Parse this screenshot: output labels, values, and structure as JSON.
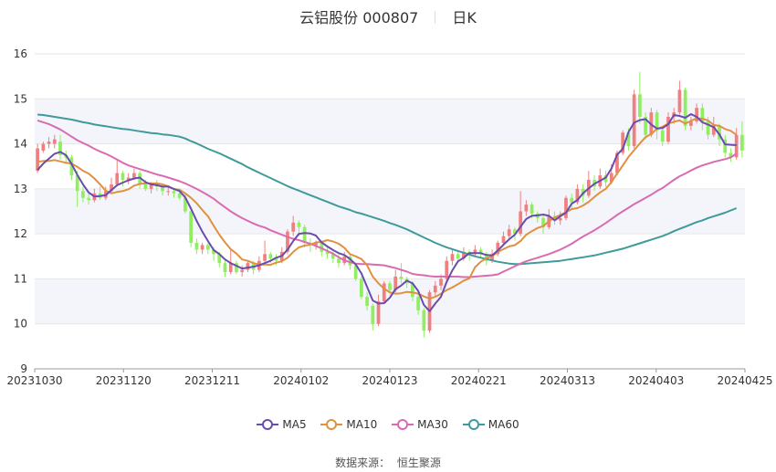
{
  "title": {
    "name": "云铝股份 000807",
    "period": "日K"
  },
  "source": {
    "label": "数据来源：",
    "value": "恒生聚源"
  },
  "colors": {
    "up": "#f08080",
    "down": "#90ee60",
    "MA5": "#6a4caf",
    "MA10": "#e0913f",
    "MA30": "#d96bb2",
    "MA60": "#3f9a9a"
  },
  "chart_data": {
    "type": "candlestick",
    "ylim": [
      9,
      16
    ],
    "yticks": [
      9,
      10,
      11,
      12,
      13,
      14,
      15,
      16
    ],
    "xticks": [
      "20231030",
      "20231120",
      "20231211",
      "20240102",
      "20240123",
      "20240221",
      "20240313",
      "20240403",
      "20240425"
    ],
    "grid": true,
    "legend_position": "bottom",
    "legend": [
      "MA5",
      "MA10",
      "MA30",
      "MA60"
    ],
    "ohlc": [
      [
        13.4,
        13.9,
        13.35,
        14.0
      ],
      [
        13.85,
        14.0,
        13.8,
        14.05
      ],
      [
        14.0,
        14.05,
        13.9,
        14.15
      ],
      [
        14.0,
        14.1,
        13.9,
        14.2
      ],
      [
        14.05,
        13.75,
        13.65,
        14.2
      ],
      [
        13.75,
        13.7,
        13.55,
        13.85
      ],
      [
        13.7,
        13.3,
        13.2,
        13.75
      ],
      [
        13.3,
        12.95,
        12.6,
        13.4
      ],
      [
        12.95,
        12.8,
        12.7,
        13.05
      ],
      [
        12.8,
        12.75,
        12.65,
        12.95
      ],
      [
        12.75,
        12.9,
        12.7,
        13.0
      ],
      [
        12.9,
        12.8,
        12.75,
        13.05
      ],
      [
        12.8,
        12.95,
        12.75,
        13.05
      ],
      [
        12.95,
        13.1,
        12.9,
        13.25
      ],
      [
        13.1,
        13.35,
        13.05,
        13.65
      ],
      [
        13.35,
        13.2,
        13.05,
        13.4
      ],
      [
        13.2,
        13.25,
        13.1,
        13.35
      ],
      [
        13.25,
        13.35,
        13.2,
        13.45
      ],
      [
        13.35,
        13.1,
        13.0,
        13.4
      ],
      [
        13.1,
        13.0,
        12.95,
        13.2
      ],
      [
        13.0,
        13.1,
        12.9,
        13.15
      ],
      [
        13.1,
        13.05,
        12.95,
        13.2
      ],
      [
        13.05,
        12.95,
        12.85,
        13.1
      ],
      [
        12.95,
        12.95,
        12.85,
        13.05
      ],
      [
        12.95,
        12.9,
        12.8,
        13.0
      ],
      [
        12.9,
        12.8,
        12.75,
        13.0
      ],
      [
        12.8,
        12.5,
        12.45,
        12.9
      ],
      [
        12.5,
        11.8,
        11.7,
        12.55
      ],
      [
        11.8,
        11.65,
        11.55,
        11.9
      ],
      [
        11.65,
        11.75,
        11.55,
        11.8
      ],
      [
        11.75,
        11.65,
        11.55,
        11.8
      ],
      [
        11.65,
        11.55,
        11.4,
        11.7
      ],
      [
        11.55,
        11.35,
        11.25,
        11.6
      ],
      [
        11.35,
        11.15,
        11.05,
        11.45
      ],
      [
        11.15,
        11.35,
        11.1,
        11.65
      ],
      [
        11.35,
        11.15,
        11.1,
        11.4
      ],
      [
        11.15,
        11.2,
        11.05,
        11.3
      ],
      [
        11.2,
        11.35,
        11.15,
        11.4
      ],
      [
        11.35,
        11.2,
        11.1,
        11.4
      ],
      [
        11.2,
        11.4,
        11.15,
        11.5
      ],
      [
        11.4,
        11.55,
        11.35,
        11.85
      ],
      [
        11.55,
        11.45,
        11.35,
        11.6
      ],
      [
        11.45,
        11.4,
        11.3,
        11.55
      ],
      [
        11.4,
        11.6,
        11.35,
        11.7
      ],
      [
        11.6,
        12.05,
        11.55,
        12.1
      ],
      [
        12.05,
        12.25,
        11.95,
        12.4
      ],
      [
        12.25,
        12.15,
        11.95,
        12.3
      ],
      [
        12.15,
        11.8,
        11.7,
        12.2
      ],
      [
        11.8,
        11.75,
        11.6,
        11.9
      ],
      [
        11.75,
        11.8,
        11.65,
        11.85
      ],
      [
        11.8,
        11.6,
        11.5,
        11.85
      ],
      [
        11.6,
        11.55,
        11.45,
        11.7
      ],
      [
        11.55,
        11.45,
        11.35,
        11.6
      ],
      [
        11.45,
        11.35,
        11.25,
        11.55
      ],
      [
        11.35,
        11.5,
        11.3,
        11.6
      ],
      [
        11.5,
        11.3,
        11.2,
        11.55
      ],
      [
        11.3,
        11.0,
        10.95,
        11.35
      ],
      [
        11.0,
        10.6,
        10.55,
        11.05
      ],
      [
        10.6,
        10.4,
        10.3,
        10.7
      ],
      [
        10.4,
        10.0,
        9.85,
        10.45
      ],
      [
        10.0,
        10.5,
        9.95,
        10.65
      ],
      [
        10.5,
        10.9,
        10.45,
        10.95
      ],
      [
        10.9,
        10.75,
        10.65,
        10.95
      ],
      [
        10.75,
        11.05,
        10.7,
        11.2
      ],
      [
        11.05,
        11.0,
        10.9,
        11.35
      ],
      [
        11.0,
        10.9,
        10.8,
        11.05
      ],
      [
        10.9,
        10.6,
        10.5,
        10.95
      ],
      [
        10.6,
        10.3,
        10.2,
        10.7
      ],
      [
        10.3,
        9.85,
        9.7,
        10.35
      ],
      [
        9.85,
        10.7,
        9.8,
        10.75
      ],
      [
        10.7,
        10.85,
        10.6,
        10.95
      ],
      [
        10.85,
        11.0,
        10.75,
        11.1
      ],
      [
        11.0,
        11.4,
        10.95,
        11.5
      ],
      [
        11.4,
        11.55,
        11.3,
        11.65
      ],
      [
        11.55,
        11.45,
        11.35,
        11.6
      ],
      [
        11.45,
        11.6,
        11.4,
        11.7
      ],
      [
        11.6,
        11.55,
        11.4,
        11.65
      ],
      [
        11.55,
        11.65,
        11.5,
        11.75
      ],
      [
        11.65,
        11.55,
        11.45,
        11.7
      ],
      [
        11.55,
        11.4,
        11.3,
        11.6
      ],
      [
        11.4,
        11.55,
        11.35,
        11.65
      ],
      [
        11.55,
        11.8,
        11.5,
        11.85
      ],
      [
        11.8,
        11.95,
        11.75,
        12.05
      ],
      [
        11.95,
        12.1,
        11.9,
        12.2
      ],
      [
        12.1,
        12.0,
        11.85,
        12.15
      ],
      [
        12.0,
        12.5,
        11.95,
        12.95
      ],
      [
        12.5,
        12.65,
        12.4,
        12.75
      ],
      [
        12.65,
        12.45,
        12.35,
        12.7
      ],
      [
        12.45,
        12.35,
        12.25,
        12.5
      ],
      [
        12.35,
        12.15,
        12.0,
        12.4
      ],
      [
        12.15,
        12.4,
        12.1,
        12.55
      ],
      [
        12.4,
        12.3,
        12.2,
        12.5
      ],
      [
        12.3,
        12.35,
        12.2,
        12.5
      ],
      [
        12.35,
        12.8,
        12.3,
        12.85
      ],
      [
        12.8,
        12.7,
        12.55,
        12.9
      ],
      [
        12.7,
        13.0,
        12.65,
        13.1
      ],
      [
        13.0,
        12.85,
        12.7,
        13.1
      ],
      [
        12.85,
        13.2,
        12.8,
        13.4
      ],
      [
        13.2,
        13.05,
        12.95,
        13.3
      ],
      [
        13.05,
        13.3,
        13.0,
        13.45
      ],
      [
        13.3,
        13.15,
        13.05,
        13.4
      ],
      [
        13.15,
        13.35,
        13.1,
        13.55
      ],
      [
        13.35,
        13.8,
        13.3,
        13.85
      ],
      [
        13.8,
        14.25,
        13.75,
        14.3
      ],
      [
        14.25,
        13.95,
        13.85,
        14.35
      ],
      [
        13.95,
        15.1,
        13.9,
        15.2
      ],
      [
        15.1,
        14.6,
        14.45,
        15.6
      ],
      [
        14.6,
        14.2,
        14.1,
        14.7
      ],
      [
        14.2,
        14.7,
        14.15,
        14.8
      ],
      [
        14.7,
        14.3,
        14.1,
        14.75
      ],
      [
        14.3,
        14.05,
        13.95,
        14.4
      ],
      [
        14.05,
        14.6,
        14.0,
        14.7
      ],
      [
        14.6,
        14.7,
        14.45,
        14.8
      ],
      [
        14.7,
        15.2,
        14.65,
        15.4
      ],
      [
        15.2,
        14.4,
        14.3,
        15.25
      ],
      [
        14.4,
        14.5,
        14.3,
        14.6
      ],
      [
        14.5,
        14.8,
        14.45,
        14.9
      ],
      [
        14.8,
        14.5,
        14.3,
        14.9
      ],
      [
        14.5,
        14.2,
        14.1,
        14.6
      ],
      [
        14.2,
        14.4,
        14.15,
        14.6
      ],
      [
        14.4,
        14.1,
        13.95,
        14.45
      ],
      [
        14.1,
        13.8,
        13.7,
        14.2
      ],
      [
        13.8,
        13.7,
        13.6,
        13.9
      ],
      [
        13.7,
        14.2,
        13.65,
        14.35
      ],
      [
        14.2,
        13.85,
        13.7,
        14.5
      ]
    ],
    "MA5": [
      13.42,
      13.56,
      13.67,
      13.78,
      13.82,
      13.75,
      13.55,
      13.31,
      13.1,
      12.92,
      12.83,
      12.84,
      12.86,
      12.97,
      13.08,
      13.14,
      13.19,
      13.23,
      13.25,
      13.15,
      13.1,
      13.08,
      13.05,
      13.05,
      13.0,
      12.95,
      12.81,
      12.56,
      12.29,
      12.05,
      11.84,
      11.64,
      11.55,
      11.43,
      11.35,
      11.29,
      11.23,
      11.25,
      11.27,
      11.3,
      11.35,
      11.4,
      11.47,
      11.51,
      11.65,
      11.84,
      12.0,
      12.02,
      12.01,
      11.96,
      11.81,
      11.72,
      11.64,
      11.57,
      11.53,
      11.44,
      11.32,
      11.12,
      10.82,
      10.52,
      10.45,
      10.46,
      10.58,
      10.77,
      10.85,
      10.96,
      10.9,
      10.73,
      10.42,
      10.28,
      10.45,
      10.6,
      10.93,
      11.19,
      11.39,
      11.47,
      11.57,
      11.57,
      11.57,
      11.53,
      11.52,
      11.63,
      11.76,
      11.88,
      11.98,
      12.16,
      12.33,
      12.4,
      12.41,
      12.43,
      12.4,
      12.3,
      12.39,
      12.47,
      12.67,
      12.75,
      12.9,
      13.01,
      13.11,
      13.18,
      13.25,
      13.45,
      13.76,
      13.89,
      14.26,
      14.47,
      14.53,
      14.55,
      14.43,
      14.34,
      14.35,
      14.44,
      14.64,
      14.62,
      14.58,
      14.66,
      14.6,
      14.48,
      14.43,
      14.37,
      14.21,
      13.99,
      13.98,
      13.97
    ],
    "MA10": [
      13.6,
      13.62,
      13.62,
      13.64,
      13.61,
      13.58,
      13.56,
      13.49,
      13.4,
      13.34,
      13.23,
      13.1,
      12.96,
      12.9,
      12.93,
      12.95,
      12.99,
      13.07,
      13.11,
      13.12,
      13.12,
      13.12,
      13.1,
      13.06,
      12.99,
      12.98,
      12.9,
      12.8,
      12.68,
      12.53,
      12.39,
      12.18,
      11.98,
      11.81,
      11.66,
      11.56,
      11.43,
      11.4,
      11.35,
      11.32,
      11.32,
      11.31,
      11.36,
      11.39,
      11.47,
      11.6,
      11.7,
      11.74,
      11.76,
      11.81,
      11.82,
      11.86,
      11.83,
      11.78,
      11.69,
      11.55,
      11.5,
      11.44,
      11.3,
      11.05,
      10.9,
      10.78,
      10.7,
      10.67,
      10.68,
      10.71,
      10.7,
      10.67,
      10.61,
      10.56,
      10.6,
      10.67,
      10.75,
      10.81,
      10.88,
      10.96,
      11.01,
      11.26,
      11.38,
      11.46,
      11.5,
      11.6,
      11.66,
      11.72,
      11.75,
      11.84,
      11.98,
      12.06,
      12.13,
      12.17,
      12.28,
      12.36,
      12.42,
      12.48,
      12.55,
      12.57,
      12.63,
      12.71,
      12.82,
      12.92,
      13.0,
      13.15,
      13.34,
      13.52,
      13.71,
      13.86,
      14.01,
      14.15,
      14.22,
      14.33,
      14.38,
      14.45,
      14.49,
      14.52,
      14.45,
      14.51,
      14.57,
      14.56,
      14.52,
      14.42,
      14.4,
      14.33,
      14.29,
      14.2
    ],
    "MA30": [
      14.52,
      14.48,
      14.44,
      14.38,
      14.32,
      14.24,
      14.16,
      14.08,
      14.02,
      13.96,
      13.89,
      13.83,
      13.78,
      13.72,
      13.65,
      13.58,
      13.52,
      13.48,
      13.44,
      13.4,
      13.36,
      13.32,
      13.29,
      13.25,
      13.21,
      13.17,
      13.12,
      13.06,
      13.0,
      12.93,
      12.86,
      12.78,
      12.68,
      12.59,
      12.5,
      12.42,
      12.35,
      12.29,
      12.23,
      12.18,
      12.14,
      12.08,
      12.03,
      11.98,
      11.93,
      11.89,
      11.86,
      11.82,
      11.78,
      11.73,
      11.68,
      11.62,
      11.56,
      11.48,
      11.41,
      11.37,
      11.34,
      11.33,
      11.33,
      11.32,
      11.31,
      11.3,
      11.27,
      11.24,
      11.2,
      11.16,
      11.11,
      11.09,
      11.08,
      11.06,
      11.05,
      11.05,
      11.05,
      11.05,
      11.05,
      11.04,
      11.04,
      11.05,
      11.06,
      11.07,
      11.08,
      11.1,
      11.16,
      11.22,
      11.28,
      11.34,
      11.39,
      11.43,
      11.47,
      11.51,
      11.55,
      11.6,
      11.65,
      11.71,
      11.78,
      11.86,
      11.94,
      12.01,
      12.08,
      12.16,
      12.24,
      12.33,
      12.42,
      12.5,
      12.58,
      12.66,
      12.73,
      12.8,
      12.87,
      12.95,
      13.02,
      13.11,
      13.2,
      13.28,
      13.34,
      13.41,
      13.47,
      13.52,
      13.56,
      13.6,
      13.63,
      13.66,
      13.7,
      13.78
    ],
    "MA60": [
      14.65,
      14.64,
      14.62,
      14.6,
      14.58,
      14.56,
      14.54,
      14.51,
      14.48,
      14.46,
      14.43,
      14.41,
      14.39,
      14.37,
      14.35,
      14.33,
      14.32,
      14.3,
      14.28,
      14.26,
      14.24,
      14.23,
      14.21,
      14.2,
      14.18,
      14.16,
      14.12,
      14.06,
      14.01,
      13.95,
      13.89,
      13.84,
      13.79,
      13.73,
      13.67,
      13.61,
      13.55,
      13.48,
      13.42,
      13.36,
      13.3,
      13.24,
      13.18,
      13.12,
      13.06,
      13.01,
      12.96,
      12.91,
      12.86,
      12.81,
      12.76,
      12.71,
      12.66,
      12.61,
      12.57,
      12.53,
      12.48,
      12.45,
      12.41,
      12.37,
      12.33,
      12.29,
      12.24,
      12.2,
      12.15,
      12.1,
      12.04,
      11.98,
      11.92,
      11.86,
      11.8,
      11.75,
      11.7,
      11.66,
      11.62,
      11.58,
      11.54,
      11.5,
      11.47,
      11.44,
      11.41,
      11.38,
      11.36,
      11.34,
      11.33,
      11.33,
      11.34,
      11.35,
      11.36,
      11.37,
      11.38,
      11.39,
      11.4,
      11.42,
      11.44,
      11.46,
      11.48,
      11.5,
      11.52,
      11.55,
      11.58,
      11.61,
      11.64,
      11.67,
      11.71,
      11.75,
      11.79,
      11.83,
      11.87,
      11.91,
      11.95,
      12.0,
      12.06,
      12.11,
      12.16,
      12.21,
      12.26,
      12.3,
      12.35,
      12.39,
      12.43,
      12.47,
      12.52,
      12.57
    ]
  }
}
